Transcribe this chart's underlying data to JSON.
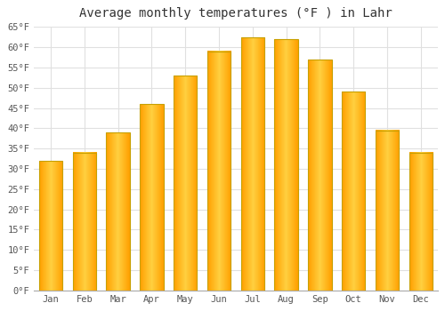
{
  "title": "Average monthly temperatures (°F ) in Lahr",
  "months": [
    "Jan",
    "Feb",
    "Mar",
    "Apr",
    "May",
    "Jun",
    "Jul",
    "Aug",
    "Sep",
    "Oct",
    "Nov",
    "Dec"
  ],
  "values": [
    32,
    34,
    39,
    46,
    53,
    59,
    62.5,
    62,
    57,
    49,
    39.5,
    34
  ],
  "ylim": [
    0,
    65
  ],
  "yticks": [
    0,
    5,
    10,
    15,
    20,
    25,
    30,
    35,
    40,
    45,
    50,
    55,
    60,
    65
  ],
  "ytick_labels": [
    "0°F",
    "5°F",
    "10°F",
    "15°F",
    "20°F",
    "25°F",
    "30°F",
    "35°F",
    "40°F",
    "45°F",
    "50°F",
    "55°F",
    "60°F",
    "65°F"
  ],
  "background_color": "#ffffff",
  "grid_color": "#e0e0e0",
  "bar_edge_color": "#c8a000",
  "bar_center_color": "#FFD040",
  "bar_side_color": "#FFA000",
  "title_fontsize": 10,
  "tick_fontsize": 7.5,
  "bar_width": 0.7
}
